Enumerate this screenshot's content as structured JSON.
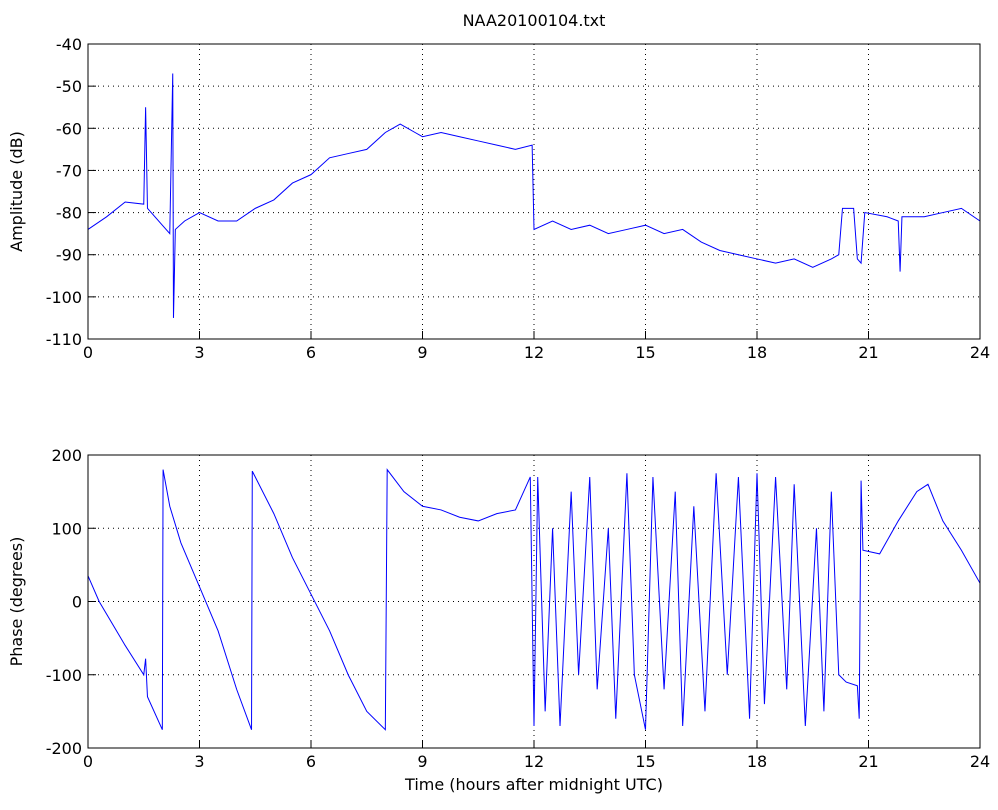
{
  "chart_data": [
    {
      "type": "line",
      "title": "NAA20100104.txt",
      "ylabel": "Amplitude (dB)",
      "grid": true,
      "xlim": [
        0,
        24
      ],
      "xticks": [
        0,
        3,
        6,
        9,
        12,
        15,
        18,
        21,
        24
      ],
      "ylim": [
        -110,
        -40
      ],
      "yticks": [
        -110,
        -100,
        -90,
        -80,
        -70,
        -60,
        -50,
        -40
      ],
      "x": [
        0,
        0.5,
        1,
        1.5,
        1.55,
        1.6,
        2,
        2.2,
        2.28,
        2.3,
        2.35,
        2.6,
        3,
        3.5,
        4,
        4.5,
        5,
        5.5,
        6,
        6.5,
        7,
        7.5,
        8,
        8.4,
        8.8,
        9,
        9.5,
        10,
        10.5,
        11,
        11.5,
        11.95,
        12,
        12.5,
        13,
        13.5,
        14,
        14.5,
        15,
        15.5,
        16,
        16.5,
        17,
        17.5,
        18,
        18.5,
        19,
        19.5,
        20,
        20.2,
        20.3,
        20.6,
        20.7,
        20.8,
        20.9,
        21.5,
        21.8,
        21.85,
        21.9,
        22.5,
        23,
        23.5,
        24
      ],
      "series": [
        {
          "color": "#0000ff",
          "values": [
            -84,
            -81,
            -77.5,
            -78,
            -55,
            -79,
            -83,
            -85,
            -47,
            -105,
            -84,
            -82,
            -80,
            -82,
            -82,
            -79,
            -77,
            -73,
            -71,
            -67,
            -66,
            -65,
            -61,
            -59,
            -61,
            -62,
            -61,
            -62,
            -63,
            -64,
            -65,
            -64,
            -84,
            -82,
            -84,
            -83,
            -85,
            -84,
            -83,
            -85,
            -84,
            -87,
            -89,
            -90,
            -91,
            -92,
            -91,
            -93,
            -91,
            -90,
            -79,
            -79,
            -91,
            -92,
            -80,
            -81,
            -82,
            -94,
            -81,
            -81,
            -80,
            -79,
            -82
          ]
        }
      ]
    },
    {
      "type": "line",
      "xlabel": "Time (hours after midnight UTC)",
      "ylabel": "Phase (degrees)",
      "grid": true,
      "xlim": [
        0,
        24
      ],
      "xticks": [
        0,
        3,
        6,
        9,
        12,
        15,
        18,
        21,
        24
      ],
      "ylim": [
        -200,
        200
      ],
      "yticks": [
        -200,
        -100,
        0,
        100,
        200
      ],
      "x": [
        0,
        0.3,
        1,
        1.5,
        1.55,
        1.6,
        2,
        2.02,
        2.2,
        2.5,
        3,
        3.5,
        4,
        4.4,
        4.42,
        5,
        5.5,
        6,
        6.5,
        7,
        7.5,
        8,
        8.05,
        8.5,
        9,
        9.5,
        10,
        10.5,
        11,
        11.5,
        11.9,
        12,
        12.1,
        12.3,
        12.5,
        12.7,
        13,
        13.2,
        13.5,
        13.7,
        14,
        14.2,
        14.5,
        14.7,
        15,
        15.2,
        15.5,
        15.8,
        16,
        16.3,
        16.6,
        16.9,
        17.2,
        17.5,
        17.8,
        18,
        18.2,
        18.5,
        18.8,
        19,
        19.3,
        19.6,
        19.8,
        20,
        20.2,
        20.4,
        20.7,
        20.75,
        20.8,
        20.85,
        21.3,
        21.8,
        22.3,
        22.6,
        23,
        23.5,
        24
      ],
      "series": [
        {
          "color": "#0000ff",
          "values": [
            35,
            0,
            -60,
            -100,
            -78,
            -130,
            -175,
            180,
            130,
            80,
            20,
            -40,
            -120,
            -175,
            178,
            120,
            60,
            10,
            -40,
            -100,
            -150,
            -175,
            180,
            150,
            130,
            125,
            115,
            110,
            120,
            125,
            170,
            -170,
            170,
            -150,
            100,
            -170,
            150,
            -100,
            170,
            -120,
            100,
            -160,
            175,
            -100,
            -175,
            170,
            -120,
            150,
            -170,
            130,
            -150,
            175,
            -100,
            170,
            -160,
            175,
            -140,
            170,
            -120,
            160,
            -170,
            100,
            -150,
            150,
            -100,
            -110,
            -115,
            -160,
            165,
            70,
            65,
            110,
            150,
            160,
            110,
            70,
            25
          ]
        }
      ]
    }
  ]
}
